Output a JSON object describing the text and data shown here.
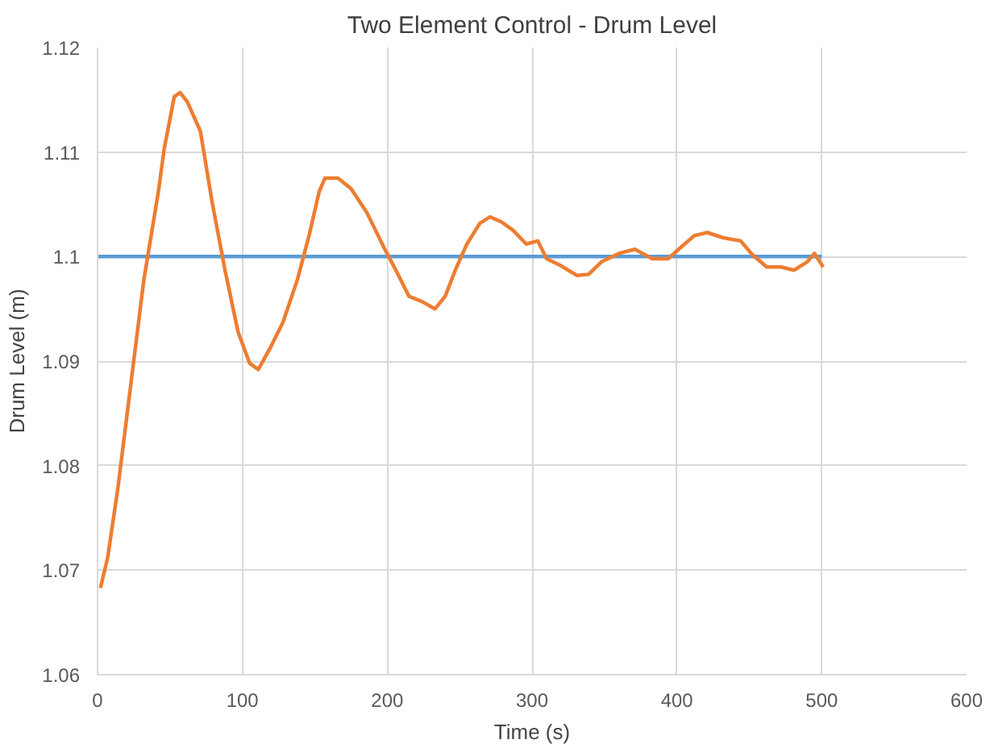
{
  "chart_data": {
    "type": "line",
    "title": "Two Element Control - Drum Level",
    "xlabel": "Time (s)",
    "ylabel": "Drum Level (m)",
    "xlim": [
      0,
      600
    ],
    "xticks": [
      0,
      100,
      200,
      300,
      400,
      500,
      600
    ],
    "ylim": [
      1.06,
      1.12
    ],
    "yticks": [
      1.06,
      1.07,
      1.08,
      1.09,
      1.1,
      1.11,
      1.12
    ],
    "grid": true,
    "marker": "none",
    "line_style": "solid",
    "series": [
      {
        "color": "#5b9bd5",
        "x": [
          0,
          500
        ],
        "values": [
          1.1,
          1.1
        ]
      },
      {
        "color": "#ed7d31",
        "x": [
          2,
          7,
          14,
          23,
          32,
          42,
          46,
          53,
          57,
          62,
          71,
          79,
          88,
          97,
          105,
          111,
          119,
          128,
          138,
          146,
          153,
          157,
          166,
          175,
          186,
          198,
          206,
          215,
          224,
          233,
          240,
          247,
          255,
          264,
          271,
          279,
          287,
          296,
          304,
          310,
          319,
          331,
          339,
          348,
          360,
          371,
          383,
          394,
          402,
          412,
          421,
          432,
          444,
          452,
          462,
          472,
          481,
          490,
          495,
          501
        ],
        "values": [
          1.0683,
          1.0712,
          1.0778,
          1.0878,
          1.0978,
          1.1062,
          1.1103,
          1.1153,
          1.1157,
          1.1148,
          1.112,
          1.1053,
          1.0987,
          1.0928,
          1.0898,
          1.0892,
          1.0912,
          1.0937,
          1.0978,
          1.102,
          1.1062,
          1.1075,
          1.1075,
          1.1065,
          1.1042,
          1.1008,
          1.0987,
          1.0962,
          1.0957,
          1.095,
          1.0962,
          1.0987,
          1.1012,
          1.1032,
          1.1038,
          1.1033,
          1.1025,
          1.1012,
          1.1015,
          1.0998,
          1.0992,
          1.0982,
          1.0983,
          1.0995,
          1.1003,
          1.1007,
          1.0998,
          1.0998,
          1.1008,
          1.102,
          1.1023,
          1.1018,
          1.1015,
          1.1002,
          1.099,
          1.099,
          1.0987,
          1.0995,
          1.1003,
          1.099
        ]
      }
    ]
  }
}
